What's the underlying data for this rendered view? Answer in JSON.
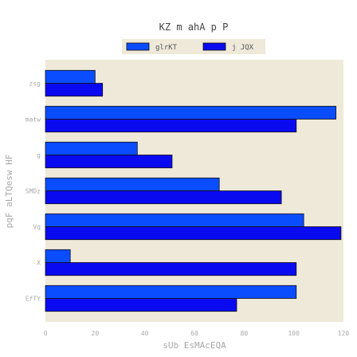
{
  "chart_data": {
    "type": "bar",
    "orientation": "horizontal",
    "title": "KZ m ahA p P",
    "xlabel": "sUb EsMAcEQA",
    "ylabel": "pqF aLTQesw HF",
    "categories": [
      "EfTY",
      "X",
      "Vq",
      "SMDz",
      "g",
      "matw",
      "zsg"
    ],
    "series": [
      {
        "name": "glrKT",
        "color": "#0a4dff",
        "values": [
          101,
          10,
          104,
          70,
          37,
          117,
          20
        ]
      },
      {
        "name": "j JQX",
        "color": "#0a0af0",
        "values": [
          77,
          101,
          119,
          95,
          51,
          101,
          23
        ]
      }
    ],
    "xlim": [
      0,
      120
    ],
    "xticks": [
      "0",
      "20",
      "40",
      "60",
      "80",
      "100",
      "120"
    ],
    "legend": "top-center",
    "grid": false,
    "background": "#efe9d9",
    "text_color": "#a9a9a9",
    "title_color": "#444444"
  }
}
